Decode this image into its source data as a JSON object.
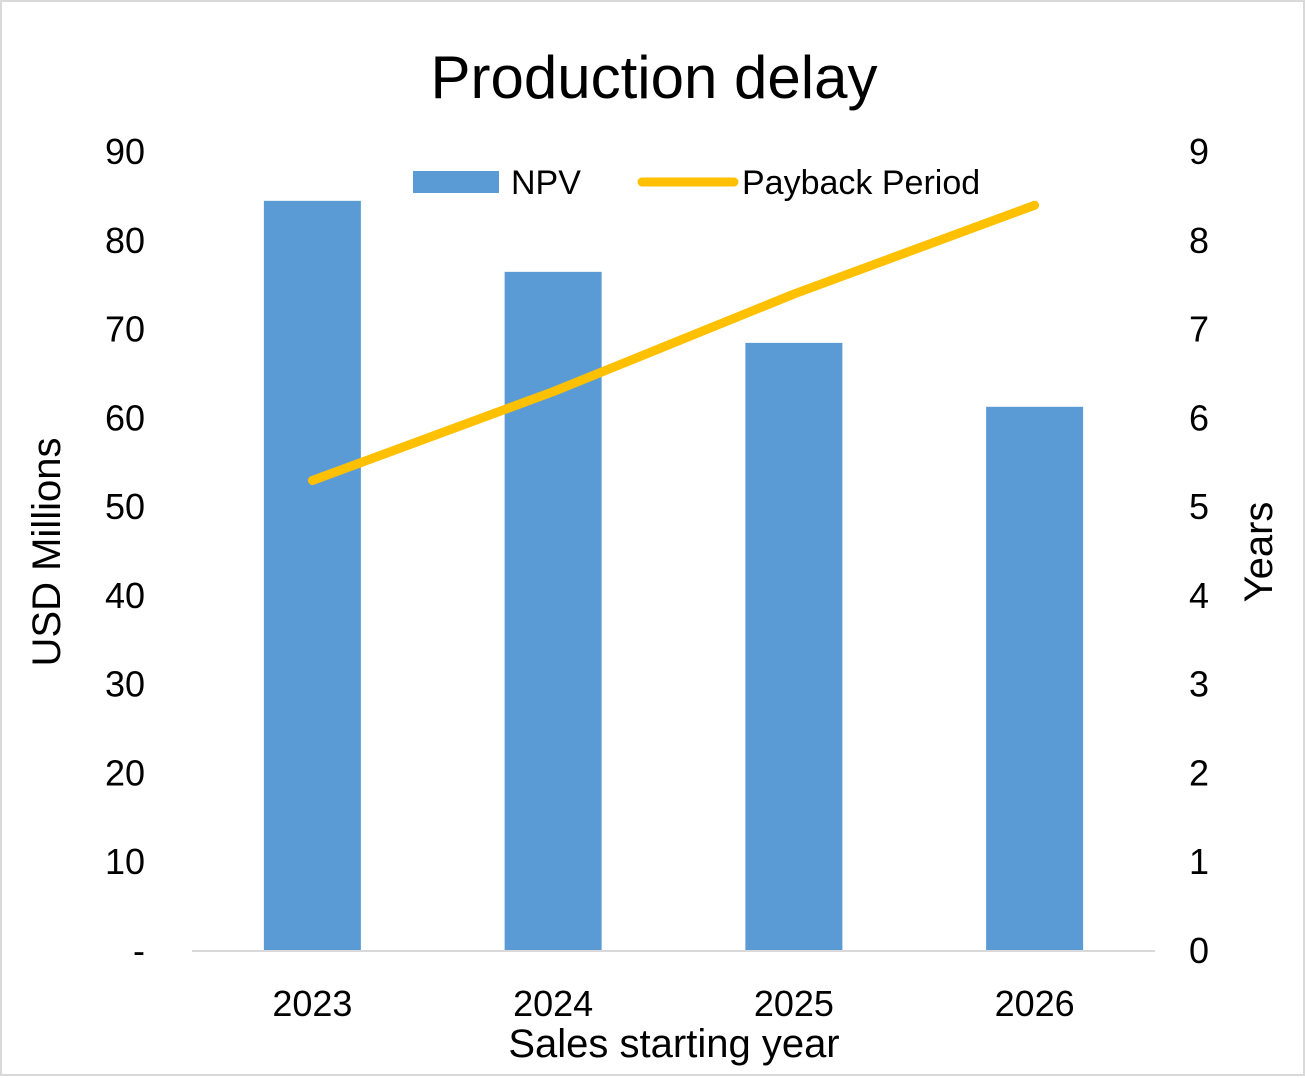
{
  "chart_data": {
    "type": "bar",
    "title": "Production delay",
    "xlabel": "Sales starting year",
    "ylabel": "USD Millions",
    "y2label": "Years",
    "categories": [
      "2023",
      "2024",
      "2025",
      "2026"
    ],
    "series": [
      {
        "name": "NPV",
        "type": "bar",
        "axis": "left",
        "values": [
          84.5,
          76.5,
          68.5,
          61.3
        ]
      },
      {
        "name": "Payback Period",
        "type": "line",
        "axis": "right",
        "values": [
          5.3,
          6.3,
          7.4,
          8.4
        ]
      }
    ],
    "ylim": [
      0,
      90
    ],
    "y2lim": [
      0,
      9
    ],
    "yticks": [
      "-",
      "10",
      "20",
      "30",
      "40",
      "50",
      "60",
      "70",
      "80",
      "90"
    ],
    "y2ticks": [
      "0",
      "1",
      "2",
      "3",
      "4",
      "5",
      "6",
      "7",
      "8",
      "9"
    ],
    "grid": false,
    "legend_position": "top",
    "colors": {
      "bar": "#5b9bd5",
      "line": "#ffc000",
      "axis": "#d9d9d9",
      "frame": "#d9d9d9"
    }
  }
}
